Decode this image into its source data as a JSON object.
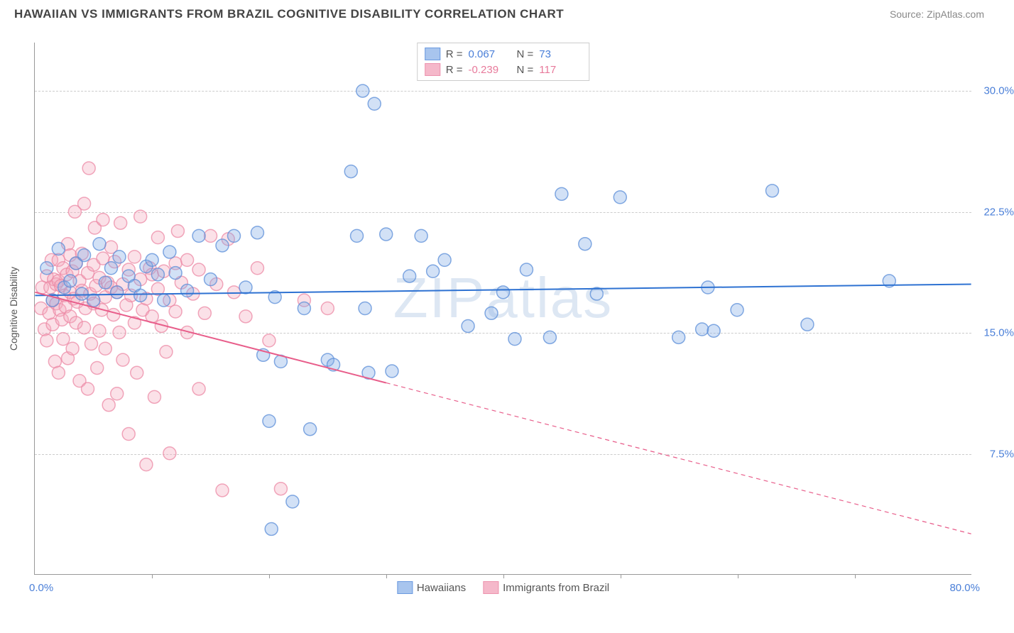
{
  "title": "HAWAIIAN VS IMMIGRANTS FROM BRAZIL COGNITIVE DISABILITY CORRELATION CHART",
  "source": "Source: ZipAtlas.com",
  "watermark": "ZIPatlas",
  "y_axis_title": "Cognitive Disability",
  "chart": {
    "type": "scatter",
    "xlim": [
      0,
      80
    ],
    "ylim": [
      0,
      33
    ],
    "x_tick_positions": [
      0,
      10,
      20,
      30,
      40,
      50,
      60,
      70
    ],
    "x_axis_label_left": "0.0%",
    "x_axis_label_right": "80.0%",
    "y_gridlines": [
      7.5,
      15.0,
      22.5,
      30.0
    ],
    "y_tick_labels": [
      "7.5%",
      "15.0%",
      "22.5%",
      "30.0%"
    ],
    "grid_color": "#cccccc",
    "axis_color": "#999999",
    "background_color": "#ffffff",
    "marker_radius": 9,
    "marker_fill_opacity": 0.35,
    "marker_stroke_opacity": 0.75,
    "line_width": 2,
    "series": [
      {
        "key": "hawaiians",
        "label": "Hawaiians",
        "color": "#7fa9e5",
        "stroke": "#5b8ed8",
        "line_color": "#2e72d2",
        "R": "0.067",
        "N": "73",
        "trend": {
          "x1": 0,
          "y1": 17.3,
          "x2": 80,
          "y2": 18.0,
          "dash_after_x": null
        },
        "points": [
          [
            1,
            19
          ],
          [
            1.5,
            17
          ],
          [
            2,
            20.2
          ],
          [
            2.5,
            17.8
          ],
          [
            3,
            18.2
          ],
          [
            3.5,
            19.3
          ],
          [
            4,
            17.4
          ],
          [
            4.2,
            19.8
          ],
          [
            5,
            17
          ],
          [
            5.5,
            20.5
          ],
          [
            6,
            18.1
          ],
          [
            6.5,
            19.0
          ],
          [
            7,
            17.5
          ],
          [
            7.2,
            19.7
          ],
          [
            8,
            18.5
          ],
          [
            8.5,
            17.9
          ],
          [
            9,
            17.3
          ],
          [
            9.5,
            19.1
          ],
          [
            10,
            19.5
          ],
          [
            10.5,
            18.6
          ],
          [
            11,
            17.0
          ],
          [
            11.5,
            20.0
          ],
          [
            12,
            18.7
          ],
          [
            13,
            17.6
          ],
          [
            14,
            21.0
          ],
          [
            15,
            18.3
          ],
          [
            16,
            20.4
          ],
          [
            17,
            21.0
          ],
          [
            18,
            17.8
          ],
          [
            19,
            21.2
          ],
          [
            19.5,
            13.6
          ],
          [
            20,
            9.5
          ],
          [
            20.2,
            2.8
          ],
          [
            20.5,
            17.2
          ],
          [
            21,
            13.2
          ],
          [
            22,
            4.5
          ],
          [
            23,
            16.5
          ],
          [
            23.5,
            9.0
          ],
          [
            25,
            13.3
          ],
          [
            25.5,
            13.0
          ],
          [
            27,
            25.0
          ],
          [
            27.5,
            21.0
          ],
          [
            28,
            30.0
          ],
          [
            28.2,
            16.5
          ],
          [
            28.5,
            12.5
          ],
          [
            29,
            29.2
          ],
          [
            30,
            21.1
          ],
          [
            30.5,
            12.6
          ],
          [
            32,
            18.5
          ],
          [
            33,
            21.0
          ],
          [
            34,
            18.8
          ],
          [
            35,
            19.5
          ],
          [
            37,
            15.4
          ],
          [
            39,
            16.2
          ],
          [
            40,
            17.5
          ],
          [
            41,
            14.6
          ],
          [
            42,
            18.9
          ],
          [
            44,
            14.7
          ],
          [
            45,
            23.6
          ],
          [
            47,
            20.5
          ],
          [
            48,
            17.4
          ],
          [
            50,
            23.4
          ],
          [
            55,
            14.7
          ],
          [
            57,
            15.2
          ],
          [
            57.5,
            17.8
          ],
          [
            58,
            15.1
          ],
          [
            60,
            16.4
          ],
          [
            63,
            23.8
          ],
          [
            66,
            15.5
          ],
          [
            73,
            18.2
          ]
        ]
      },
      {
        "key": "brazil",
        "label": "Immigrants from Brazil",
        "color": "#f4a8bd",
        "stroke": "#ec8aa6",
        "line_color": "#e85d8a",
        "R": "-0.239",
        "N": "117",
        "trend": {
          "x1": 0,
          "y1": 17.5,
          "x2": 80,
          "y2": 2.5,
          "dash_after_x": 30
        },
        "points": [
          [
            0.5,
            16.5
          ],
          [
            0.6,
            17.8
          ],
          [
            0.8,
            15.2
          ],
          [
            1,
            18.5
          ],
          [
            1,
            14.5
          ],
          [
            1.2,
            16.2
          ],
          [
            1.3,
            17.8
          ],
          [
            1.4,
            19.5
          ],
          [
            1.5,
            17.0
          ],
          [
            1.5,
            15.5
          ],
          [
            1.6,
            18.3
          ],
          [
            1.7,
            13.2
          ],
          [
            1.8,
            16.8
          ],
          [
            1.8,
            18.0
          ],
          [
            2,
            19.5
          ],
          [
            2,
            18.2
          ],
          [
            2,
            12.5
          ],
          [
            2.1,
            16.4
          ],
          [
            2.2,
            17.9
          ],
          [
            2.3,
            15.8
          ],
          [
            2.4,
            14.6
          ],
          [
            2.4,
            19.0
          ],
          [
            2.5,
            17.3
          ],
          [
            2.6,
            16.6
          ],
          [
            2.7,
            18.6
          ],
          [
            2.8,
            13.4
          ],
          [
            2.8,
            20.5
          ],
          [
            3,
            17.5
          ],
          [
            3,
            16.0
          ],
          [
            3,
            19.8
          ],
          [
            3.2,
            18.8
          ],
          [
            3.2,
            14.0
          ],
          [
            3.3,
            17.1
          ],
          [
            3.4,
            22.5
          ],
          [
            3.5,
            19.3
          ],
          [
            3.5,
            15.6
          ],
          [
            3.6,
            16.9
          ],
          [
            3.8,
            18.2
          ],
          [
            3.8,
            12.0
          ],
          [
            4,
            17.6
          ],
          [
            4,
            19.9
          ],
          [
            4.2,
            15.3
          ],
          [
            4.2,
            23.0
          ],
          [
            4.3,
            16.5
          ],
          [
            4.5,
            18.7
          ],
          [
            4.5,
            11.5
          ],
          [
            4.6,
            25.2
          ],
          [
            4.7,
            17.4
          ],
          [
            4.8,
            14.3
          ],
          [
            5,
            19.2
          ],
          [
            5,
            16.8
          ],
          [
            5.1,
            21.5
          ],
          [
            5.2,
            17.9
          ],
          [
            5.3,
            12.8
          ],
          [
            5.5,
            18.4
          ],
          [
            5.5,
            15.1
          ],
          [
            5.7,
            16.4
          ],
          [
            5.8,
            19.6
          ],
          [
            5.8,
            22.0
          ],
          [
            6,
            17.2
          ],
          [
            6,
            14.0
          ],
          [
            6.2,
            18.1
          ],
          [
            6.3,
            10.5
          ],
          [
            6.5,
            17.8
          ],
          [
            6.5,
            20.3
          ],
          [
            6.7,
            16.1
          ],
          [
            6.8,
            19.4
          ],
          [
            7,
            11.2
          ],
          [
            7,
            17.5
          ],
          [
            7.2,
            15.0
          ],
          [
            7.3,
            21.8
          ],
          [
            7.5,
            18.0
          ],
          [
            7.5,
            13.3
          ],
          [
            7.8,
            16.7
          ],
          [
            8,
            18.9
          ],
          [
            8,
            8.7
          ],
          [
            8.2,
            17.3
          ],
          [
            8.5,
            19.7
          ],
          [
            8.5,
            15.6
          ],
          [
            8.7,
            12.5
          ],
          [
            9,
            18.3
          ],
          [
            9,
            22.2
          ],
          [
            9.2,
            16.4
          ],
          [
            9.5,
            17.1
          ],
          [
            9.5,
            6.8
          ],
          [
            9.8,
            19.0
          ],
          [
            10,
            16.0
          ],
          [
            10,
            18.6
          ],
          [
            10.2,
            11.0
          ],
          [
            10.5,
            17.7
          ],
          [
            10.5,
            20.9
          ],
          [
            10.8,
            15.4
          ],
          [
            11,
            18.8
          ],
          [
            11.2,
            13.8
          ],
          [
            11.5,
            17.0
          ],
          [
            11.5,
            7.5
          ],
          [
            12,
            19.3
          ],
          [
            12,
            16.3
          ],
          [
            12.2,
            21.3
          ],
          [
            12.5,
            18.1
          ],
          [
            13,
            15.0
          ],
          [
            13,
            19.5
          ],
          [
            13.5,
            17.4
          ],
          [
            14,
            11.5
          ],
          [
            14,
            18.9
          ],
          [
            14.5,
            16.2
          ],
          [
            15,
            21.0
          ],
          [
            15.5,
            18.0
          ],
          [
            16,
            5.2
          ],
          [
            16.5,
            20.8
          ],
          [
            17,
            17.5
          ],
          [
            18,
            16.0
          ],
          [
            19,
            19.0
          ],
          [
            20,
            14.5
          ],
          [
            21,
            5.3
          ],
          [
            23,
            17.0
          ],
          [
            25,
            16.5
          ]
        ]
      }
    ]
  },
  "legend_bottom": [
    {
      "label": "Hawaiians",
      "fill": "#a8c5ee",
      "stroke": "#6b9ae0"
    },
    {
      "label": "Immigrants from Brazil",
      "fill": "#f5b8ca",
      "stroke": "#ed93ae"
    }
  ]
}
